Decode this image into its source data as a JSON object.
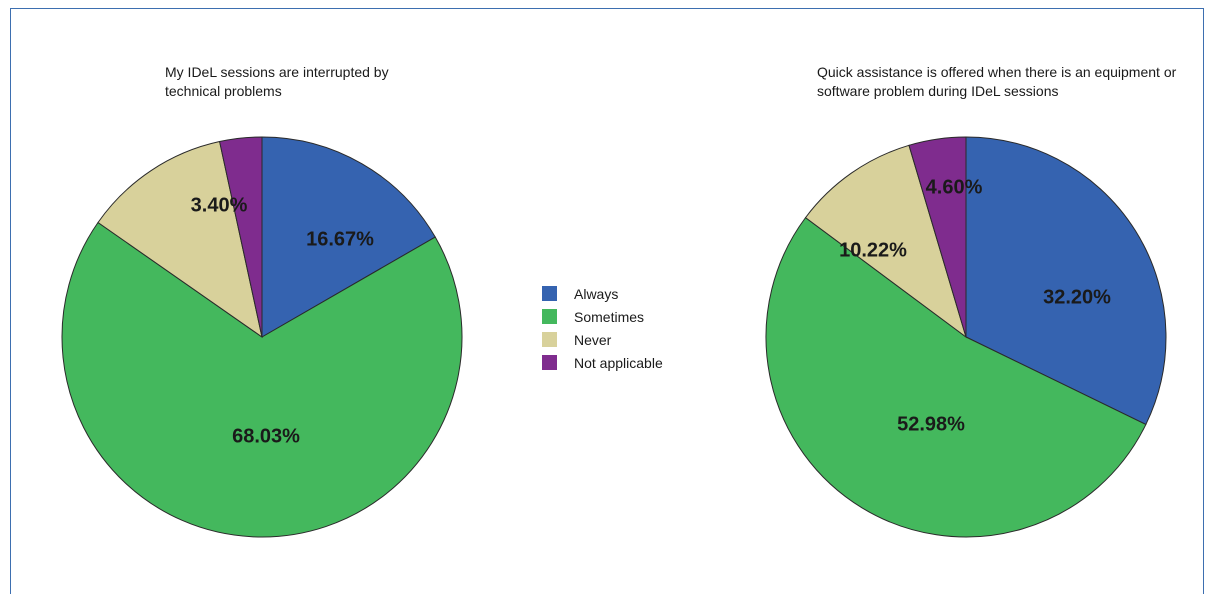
{
  "chart_data": [
    {
      "type": "pie",
      "title": "My IDeL sessions are interrupted by technical problems",
      "labels": [
        "Always",
        "Sometimes",
        "Never",
        "Not applicable"
      ],
      "values": [
        16.67,
        68.03,
        11.9,
        3.4
      ],
      "data_labels": [
        "16.67%",
        "68.03%",
        "",
        "3.40%"
      ],
      "colors": [
        "#3563b0",
        "#44b85d",
        "#d8d19b",
        "#7f2c8e"
      ]
    },
    {
      "type": "pie",
      "title": "Quick assistance is offered when there is an equipment or software problem during IDeL sessions",
      "labels": [
        "Always",
        "Sometimes",
        "Never",
        "Not applicable"
      ],
      "values": [
        32.2,
        52.98,
        10.22,
        4.6
      ],
      "data_labels": [
        "32.20%",
        "52.98%",
        "10.22%",
        "4.60%"
      ],
      "colors": [
        "#3563b0",
        "#44b85d",
        "#d8d19b",
        "#7f2c8e"
      ]
    }
  ],
  "legend": {
    "placement": "center",
    "items": [
      {
        "label": "Always",
        "color": "#3563b0"
      },
      {
        "label": "Sometimes",
        "color": "#44b85d"
      },
      {
        "label": "Never",
        "color": "#d8d19b"
      },
      {
        "label": "Not applicable",
        "color": "#7f2c8e"
      }
    ]
  }
}
